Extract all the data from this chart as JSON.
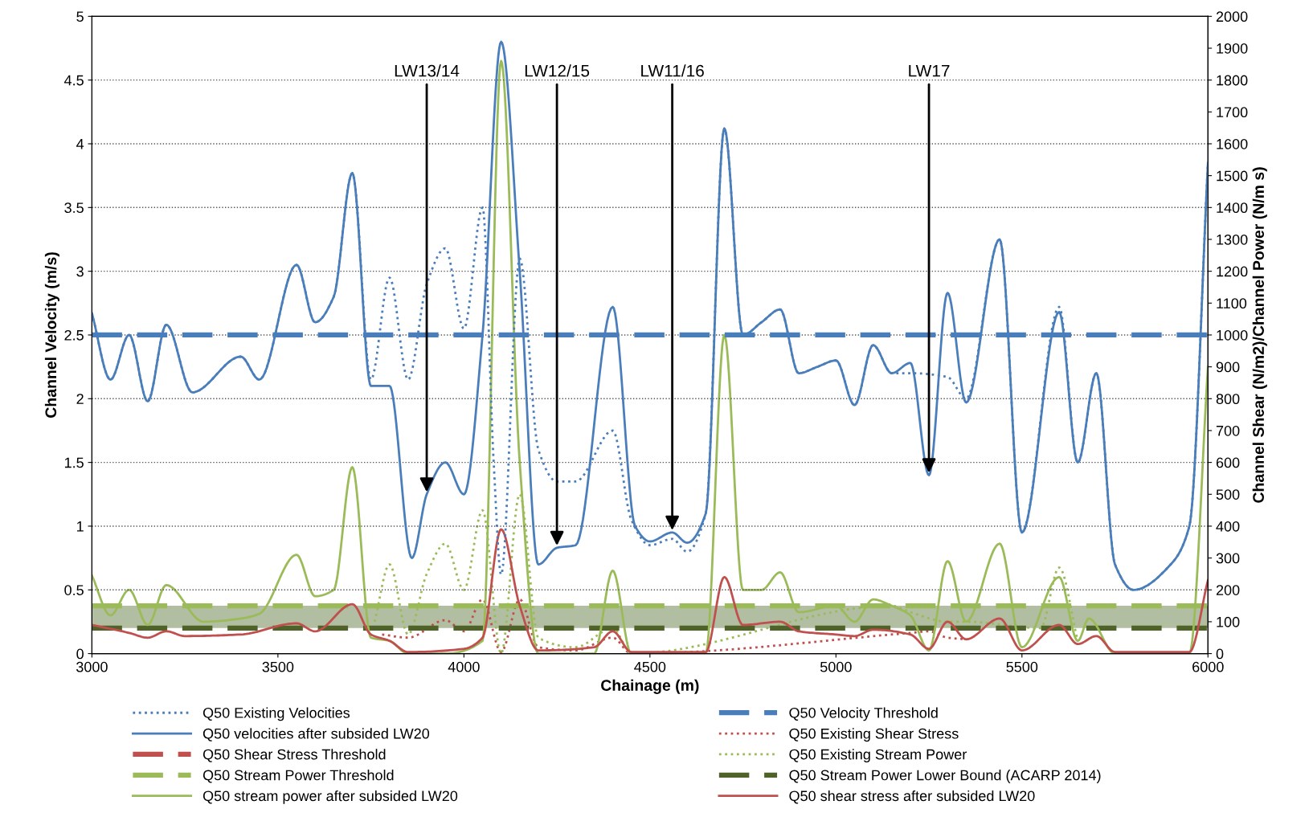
{
  "chart_data": {
    "type": "line",
    "xlabel": "Chainage (m)",
    "ylabel": "Channel Velocity (m/s)",
    "y2label": "Channel Shear (N/m2)/Channel Power (N/m s)",
    "xlim": [
      3000,
      6000
    ],
    "xticks": [
      3000,
      3500,
      4000,
      4500,
      5000,
      5500,
      6000
    ],
    "ylim": [
      0,
      5
    ],
    "yticks": [
      0,
      0.5,
      1,
      1.5,
      2,
      2.5,
      3,
      3.5,
      4,
      4.5,
      5
    ],
    "y2lim": [
      0,
      2000
    ],
    "y2ticks": [
      0,
      100,
      200,
      300,
      400,
      500,
      600,
      700,
      800,
      900,
      1000,
      1100,
      1200,
      1300,
      1400,
      1500,
      1600,
      1700,
      1800,
      1900,
      2000
    ],
    "grid": "y",
    "legend": "bottom",
    "marker": "none",
    "bands": [
      {
        "axis": "y2",
        "from": 80,
        "to": 150,
        "color": "#aab797"
      }
    ],
    "annotations": [
      {
        "text": "LW13/14",
        "x": 3900,
        "y": 1.25
      },
      {
        "text": "LW12/15",
        "x": 4250,
        "y": 0.83
      },
      {
        "text": "LW11/16",
        "x": 4560,
        "y": 0.95
      },
      {
        "text": "LW17",
        "x": 5250,
        "y": 1.4
      }
    ],
    "series": [
      {
        "name": "Q50 Existing Velocities",
        "color": "#4a7ebb",
        "line_style": "dotted",
        "x": [
          3000,
          3050,
          3100,
          3150,
          3200,
          3270,
          3400,
          3450,
          3550,
          3600,
          3650,
          3700,
          3750,
          3800,
          3850,
          3900,
          3950,
          4000,
          4050,
          4080,
          4100,
          4150,
          4200,
          4250,
          4300,
          4400,
          4450,
          4500,
          4560,
          4600,
          4650,
          4700,
          4750,
          4800,
          4850,
          4900,
          4950,
          5000,
          5050,
          5100,
          5150,
          5200,
          5300,
          5350,
          5440,
          5500,
          5600,
          5650,
          5700,
          5750,
          5800,
          5900,
          5950,
          6000
        ],
        "values": [
          2.67,
          2.15,
          2.5,
          1.98,
          2.58,
          2.05,
          2.33,
          2.15,
          3.05,
          2.6,
          2.8,
          3.77,
          2.15,
          2.95,
          2.15,
          2.9,
          3.18,
          2.55,
          3.5,
          1.5,
          0.62,
          3.1,
          1.6,
          1.35,
          1.35,
          1.75,
          1.05,
          0.85,
          0.9,
          0.8,
          1.1,
          4.12,
          2.5,
          2.6,
          2.7,
          2.2,
          2.25,
          2.3,
          1.95,
          2.42,
          2.2,
          2.2,
          2.17,
          2.0,
          3.25,
          0.95,
          2.72,
          1.5,
          2.2,
          0.7,
          0.5,
          0.7,
          1.0,
          3.85
        ]
      },
      {
        "name": "Q50 Velocity Threshold",
        "color": "#4a7ebb",
        "line_style": "dashed",
        "x": [
          3000,
          6000
        ],
        "values": [
          2.5,
          2.5
        ]
      },
      {
        "name": "Q50 velocities after subsided LW20",
        "color": "#4a7ebb",
        "line_style": "solid",
        "x": [
          3000,
          3050,
          3100,
          3150,
          3200,
          3270,
          3400,
          3450,
          3550,
          3600,
          3650,
          3700,
          3750,
          3800,
          3860,
          3900,
          3950,
          4000,
          4050,
          4100,
          4150,
          4200,
          4250,
          4300,
          4400,
          4460,
          4500,
          4560,
          4600,
          4650,
          4700,
          4750,
          4800,
          4850,
          4900,
          4950,
          5000,
          5050,
          5100,
          5150,
          5200,
          5250,
          5300,
          5350,
          5440,
          5500,
          5600,
          5650,
          5700,
          5750,
          5800,
          5900,
          5950,
          6000
        ],
        "values": [
          2.67,
          2.15,
          2.5,
          1.98,
          2.58,
          2.05,
          2.33,
          2.15,
          3.05,
          2.6,
          2.8,
          3.77,
          2.1,
          2.1,
          0.75,
          1.25,
          1.5,
          1.25,
          2.5,
          4.8,
          3.0,
          0.7,
          0.83,
          0.85,
          2.72,
          1.0,
          0.88,
          0.95,
          0.87,
          1.1,
          4.12,
          2.5,
          2.6,
          2.7,
          2.2,
          2.25,
          2.3,
          1.95,
          2.42,
          2.2,
          2.28,
          1.4,
          2.83,
          1.97,
          3.25,
          0.95,
          2.68,
          1.5,
          2.2,
          0.7,
          0.5,
          0.7,
          1.0,
          3.85
        ]
      },
      {
        "name": "Q50 Existing Shear Stress",
        "color": "#c0504d",
        "line_style": "dotted",
        "axis": "y2",
        "x": [
          3780,
          3850,
          3950,
          4000,
          4050,
          4100,
          4150,
          4200,
          4300,
          4400,
          4450,
          5200,
          5250,
          5300,
          5350
        ],
        "values": [
          60,
          50,
          105,
          70,
          170,
          5,
          170,
          20,
          10,
          50,
          0,
          65,
          70,
          50,
          45
        ]
      },
      {
        "name": "Q50 Shear Stress Threshold",
        "color": "#c0504d",
        "line_style": "dashed",
        "axis": "y2"
      },
      {
        "name": "Q50 Existing Stream Power",
        "color": "#9bbb59",
        "line_style": "dotted",
        "axis": "y2",
        "x": [
          3760,
          3800,
          3850,
          3900,
          3950,
          4000,
          4050,
          4100,
          4150,
          4200,
          4300,
          4400,
          4450,
          5150,
          5200,
          5300,
          5350,
          5550,
          5600,
          5650
        ],
        "values": [
          100,
          280,
          60,
          250,
          345,
          200,
          450,
          0,
          500,
          50,
          20,
          80,
          0,
          150,
          130,
          100,
          100,
          80,
          270,
          40
        ]
      },
      {
        "name": "Q50 Stream Power Threshold",
        "color": "#9bbb59",
        "line_style": "dashed",
        "axis": "y2",
        "x": [
          3000,
          6000
        ],
        "values": [
          150,
          150
        ]
      },
      {
        "name": "Q50 Stream Power Lower Bound (ACARP 2014)",
        "color": "#4f6228",
        "line_style": "dashed",
        "axis": "y2",
        "x": [
          3000,
          6000
        ],
        "values": [
          80,
          80
        ]
      },
      {
        "name": "Q50 stream power after subsided LW20",
        "color": "#9bbb59",
        "line_style": "solid",
        "axis": "y2",
        "x": [
          3000,
          3050,
          3100,
          3150,
          3200,
          3300,
          3400,
          3450,
          3550,
          3600,
          3650,
          3700,
          3750,
          3800,
          3850,
          3950,
          4050,
          4100,
          4150,
          4200,
          4350,
          4400,
          4450,
          4650,
          4700,
          4750,
          4800,
          4850,
          4900,
          5000,
          5050,
          5100,
          5150,
          5200,
          5250,
          5300,
          5350,
          5440,
          5500,
          5600,
          5650,
          5680,
          5750,
          5950,
          6000
        ],
        "values": [
          245,
          120,
          200,
          90,
          215,
          100,
          110,
          125,
          310,
          180,
          200,
          585,
          50,
          40,
          0,
          0,
          40,
          1860,
          600,
          0,
          0,
          260,
          0,
          0,
          1000,
          200,
          200,
          255,
          130,
          150,
          100,
          170,
          150,
          120,
          10,
          290,
          100,
          345,
          20,
          240,
          40,
          110,
          0,
          0,
          900
        ]
      },
      {
        "name": "Q50 shear stress after subsided LW20",
        "color": "#c0504d",
        "line_style": "solid",
        "axis": "y2",
        "x": [
          3000,
          3100,
          3150,
          3200,
          3250,
          3400,
          3550,
          3600,
          3700,
          3750,
          3800,
          3850,
          4000,
          4050,
          4100,
          4150,
          4200,
          4350,
          4400,
          4450,
          4650,
          4700,
          4750,
          4850,
          4900,
          5000,
          5050,
          5100,
          5200,
          5250,
          5300,
          5350,
          5440,
          5500,
          5600,
          5650,
          5700,
          5750,
          5950,
          6000
        ],
        "values": [
          90,
          65,
          50,
          70,
          55,
          60,
          95,
          70,
          155,
          60,
          40,
          5,
          15,
          50,
          390,
          150,
          10,
          20,
          70,
          5,
          5,
          240,
          90,
          100,
          70,
          60,
          55,
          75,
          60,
          15,
          100,
          45,
          110,
          10,
          90,
          30,
          55,
          5,
          5,
          230
        ]
      }
    ]
  }
}
